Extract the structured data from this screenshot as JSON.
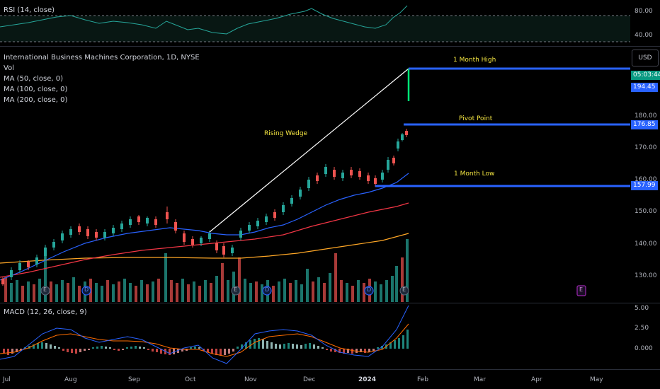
{
  "rsi": {
    "title": "RSI (14, close)",
    "ticks": [
      "80.00",
      "40.00"
    ]
  },
  "main": {
    "title": "International Business Machines Corporation, 1D, NYSE",
    "indicators": [
      "Vol",
      "MA (50, close, 0)",
      "MA (100, close, 0)",
      "MA (200, close, 0)"
    ],
    "ticks": [
      "180.00",
      "170.00",
      "160.00",
      "150.00",
      "140.00",
      "130.00"
    ],
    "currency_button": "USD",
    "price_tags": {
      "timer": "05:03:44",
      "high": "194.45",
      "pivot": "176.85",
      "low": "157.99"
    },
    "annotations": {
      "high": "1 Month High",
      "pivot": "Pivot Point",
      "low": "1 Month Low",
      "wedge": "Rising Wedge"
    },
    "event_letters": {
      "earnings": "E",
      "dividend": "D"
    }
  },
  "macd": {
    "title": "MACD (12, 26, close, 9)",
    "ticks": [
      "5.00",
      "2.50",
      "0.000"
    ]
  },
  "x_axis": {
    "labels": [
      "Jul",
      "Aug",
      "Sep",
      "Oct",
      "Nov",
      "Dec",
      "2024",
      "Feb",
      "Mar",
      "Apr",
      "May"
    ]
  },
  "colors": {
    "up": "#26a69a",
    "down": "#ef5350",
    "ma50": "#2962ff",
    "ma100": "#f23645",
    "ma200": "#ffa726",
    "level_line": "#2962ff",
    "annotation_text": "#f5e642",
    "macd_line": "#2962ff",
    "signal_line": "#ff6d00"
  }
}
